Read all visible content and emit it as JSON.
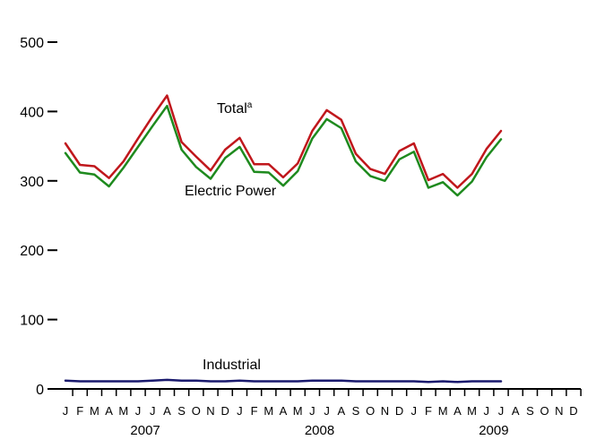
{
  "chart_data": {
    "type": "line",
    "ylim": [
      0,
      500
    ],
    "yticks": [
      "0",
      "100",
      "200",
      "300",
      "400",
      "500"
    ],
    "month_labels": [
      "J",
      "F",
      "M",
      "A",
      "M",
      "J",
      "J",
      "A",
      "S",
      "O",
      "N",
      "D",
      "J",
      "F",
      "M",
      "A",
      "M",
      "J",
      "J",
      "A",
      "S",
      "O",
      "N",
      "D",
      "J",
      "F",
      "M",
      "A",
      "M",
      "J",
      "J",
      "A",
      "S",
      "O",
      "N",
      "D"
    ],
    "year_labels": [
      "2007",
      "2008",
      "2009"
    ],
    "x": [
      "2007-01",
      "2007-02",
      "2007-03",
      "2007-04",
      "2007-05",
      "2007-06",
      "2007-07",
      "2007-08",
      "2007-09",
      "2007-10",
      "2007-11",
      "2007-12",
      "2008-01",
      "2008-02",
      "2008-03",
      "2008-04",
      "2008-05",
      "2008-06",
      "2008-07",
      "2008-08",
      "2008-09",
      "2008-10",
      "2008-11",
      "2008-12",
      "2009-01",
      "2009-02",
      "2009-03",
      "2009-04",
      "2009-05",
      "2009-06",
      "2009-07"
    ],
    "series": [
      {
        "name": "Total",
        "superscript": "a",
        "color": "#c0171c",
        "values": [
          354,
          323,
          321,
          304,
          328,
          361,
          393,
          423,
          356,
          335,
          315,
          345,
          362,
          324,
          324,
          305,
          325,
          372,
          402,
          388,
          339,
          317,
          310,
          343,
          354,
          301,
          310,
          290,
          310,
          346,
          372
        ]
      },
      {
        "name": "Electric Power",
        "color": "#1e8a1e",
        "values": [
          340,
          312,
          309,
          292,
          319,
          349,
          379,
          408,
          345,
          320,
          303,
          333,
          349,
          313,
          312,
          293,
          314,
          361,
          389,
          376,
          328,
          307,
          300,
          331,
          342,
          290,
          298,
          279,
          299,
          334,
          360
        ]
      },
      {
        "name": "Industrial",
        "color": "#1a1a6e",
        "values": [
          12,
          11,
          11,
          11,
          11,
          11,
          12,
          13,
          12,
          12,
          11,
          11,
          12,
          11,
          11,
          11,
          11,
          12,
          12,
          12,
          11,
          11,
          11,
          11,
          11,
          10,
          11,
          10,
          11,
          11,
          11
        ]
      }
    ]
  }
}
